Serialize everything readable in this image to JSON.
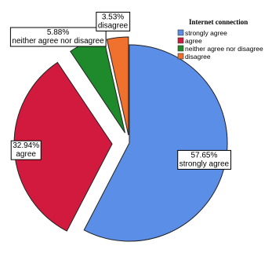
{
  "chart_data": {
    "type": "pie",
    "legend_title": "Internet connection",
    "legend_position": "top-right",
    "slices": [
      {
        "category": "strongly agree",
        "value": 57.65,
        "label": "57.65%",
        "sublabel": "strongly agree",
        "color": "#5b8ee6"
      },
      {
        "category": "agree",
        "value": 32.94,
        "label": "32.94%",
        "sublabel": "agree",
        "color": "#d11a3e"
      },
      {
        "category": "neither agree nor disagree",
        "value": 5.88,
        "label": "5.88%",
        "sublabel": "neither agree nor disagree",
        "color": "#1f8a2c"
      },
      {
        "category": "disagree",
        "value": 3.53,
        "label": "3.53%",
        "sublabel": "disagree",
        "color": "#f0702e"
      }
    ],
    "legend_items": [
      {
        "label": "strongly agree",
        "color": "#5b8ee6"
      },
      {
        "label": "agree",
        "color": "#d11a3e"
      },
      {
        "label": "neither agree nor disagree",
        "color": "#1f8a2c"
      },
      {
        "label": "disagree",
        "color": "#f0702e"
      }
    ]
  }
}
